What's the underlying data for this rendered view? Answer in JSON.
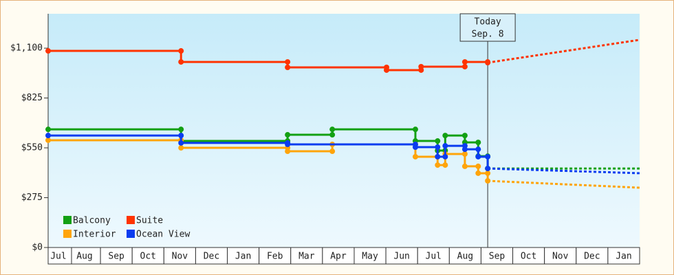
{
  "chart_data": {
    "type": "step-line",
    "xlim": [
      -0.65,
      18
    ],
    "xticks": [
      {
        "value": -0.325,
        "label": "Jul"
      },
      {
        "value": 0.5,
        "label": "Aug"
      },
      {
        "value": 1.5,
        "label": "Sep"
      },
      {
        "value": 2.5,
        "label": "Oct"
      },
      {
        "value": 3.5,
        "label": "Nov"
      },
      {
        "value": 4.5,
        "label": "Dec"
      },
      {
        "value": 5.5,
        "label": "Jan"
      },
      {
        "value": 6.5,
        "label": "Feb"
      },
      {
        "value": 7.5,
        "label": "Mar"
      },
      {
        "value": 8.5,
        "label": "Apr"
      },
      {
        "value": 9.5,
        "label": "May"
      },
      {
        "value": 10.5,
        "label": "Jun"
      },
      {
        "value": 11.5,
        "label": "Jul"
      },
      {
        "value": 12.5,
        "label": "Aug"
      },
      {
        "value": 13.5,
        "label": "Sep"
      },
      {
        "value": 14.5,
        "label": "Oct"
      },
      {
        "value": 15.5,
        "label": "Nov"
      },
      {
        "value": 16.5,
        "label": "Dec"
      },
      {
        "value": 17.5,
        "label": "Jan"
      }
    ],
    "ylim": [
      0,
      1290
    ],
    "yticks": [
      {
        "value": 0,
        "label": "$0"
      },
      {
        "value": 275,
        "label": "$275"
      },
      {
        "value": 550,
        "label": "$550"
      },
      {
        "value": 825,
        "label": "$825"
      },
      {
        "value": 1100,
        "label": "$1,100"
      }
    ],
    "today": {
      "x": 13.21,
      "label": "Today",
      "date": "Sep. 8"
    },
    "forecast_x": [
      13.21,
      18
    ],
    "legend": "bottom-left",
    "series": [
      {
        "name": "Balcony",
        "color": "#13a013",
        "x": [
          -0.65,
          3.54,
          6.9,
          8.31,
          10.93,
          11.63,
          11.87,
          12.49,
          12.91,
          13.21
        ],
        "values": [
          652,
          588,
          622,
          652,
          588,
          535,
          618,
          580,
          504,
          436
        ],
        "forecast": [
          436,
          436
        ]
      },
      {
        "name": "Suite",
        "color": "#ff3300",
        "x": [
          -0.65,
          3.54,
          6.9,
          10.02,
          11.11,
          12.49,
          13.21
        ],
        "values": [
          1085,
          1024,
          994,
          979,
          998,
          1024,
          1020
        ],
        "forecast": [
          1020,
          1146
        ]
      },
      {
        "name": "Interior",
        "color": "#ffa40a",
        "x": [
          -0.65,
          3.54,
          6.9,
          8.31,
          10.93,
          11.63,
          11.87,
          12.49,
          12.91,
          13.21
        ],
        "values": [
          592,
          550,
          531,
          569,
          501,
          455,
          516,
          448,
          410,
          368
        ],
        "forecast": [
          368,
          330
        ]
      },
      {
        "name": "Ocean View",
        "color": "#0a3cf0",
        "x": [
          -0.65,
          3.54,
          6.9,
          10.93,
          11.63,
          11.87,
          12.49,
          12.91,
          13.21
        ],
        "values": [
          618,
          577,
          569,
          554,
          501,
          561,
          542,
          501,
          436
        ],
        "forecast": [
          436,
          410
        ]
      }
    ]
  }
}
